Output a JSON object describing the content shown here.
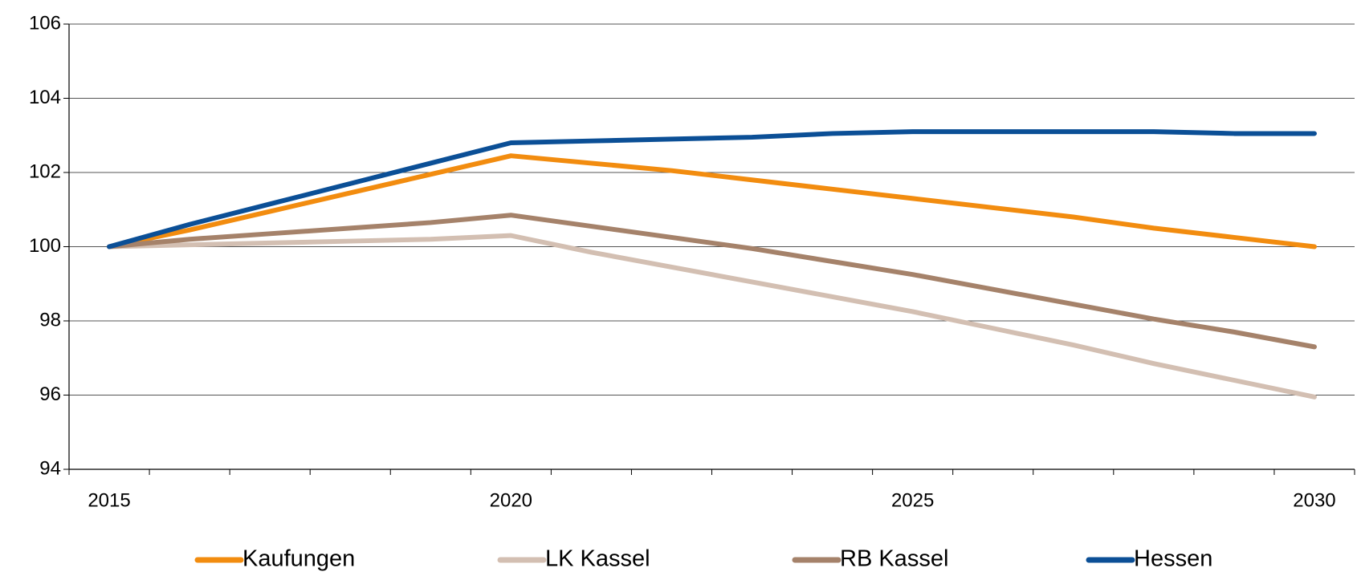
{
  "chart_data": {
    "type": "line",
    "categories": [
      "2015",
      null,
      null,
      null,
      null,
      "2020",
      null,
      null,
      null,
      null,
      "2025",
      null,
      null,
      null,
      null,
      "2030"
    ],
    "series": [
      {
        "name": "Kaufungen",
        "color": "#f28c0f",
        "values": [
          100,
          100.45,
          100.95,
          101.45,
          101.95,
          102.45,
          102.25,
          102.05,
          101.8,
          101.55,
          101.3,
          101.05,
          100.8,
          100.5,
          100.25,
          100
        ]
      },
      {
        "name": "LK Kassel",
        "color": "#d3bfb2",
        "values": [
          100,
          100.05,
          100.1,
          100.15,
          100.2,
          100.3,
          99.85,
          99.45,
          99.05,
          98.65,
          98.25,
          97.8,
          97.35,
          96.85,
          96.4,
          95.95
        ]
      },
      {
        "name": "RB Kassel",
        "color": "#a5826a",
        "values": [
          100,
          100.2,
          100.35,
          100.5,
          100.65,
          100.85,
          100.55,
          100.25,
          99.95,
          99.6,
          99.25,
          98.85,
          98.45,
          98.05,
          97.7,
          97.3
        ]
      },
      {
        "name": "Hessen",
        "color": "#0b4f96",
        "values": [
          100,
          100.6,
          101.15,
          101.7,
          102.25,
          102.8,
          102.85,
          102.9,
          102.95,
          103.05,
          103.1,
          103.1,
          103.1,
          103.1,
          103.05,
          103.05
        ]
      }
    ],
    "ylim": [
      94,
      106
    ],
    "yticks": [
      94,
      96,
      98,
      100,
      102,
      104,
      106
    ],
    "grid": true,
    "legend": "bottom"
  }
}
